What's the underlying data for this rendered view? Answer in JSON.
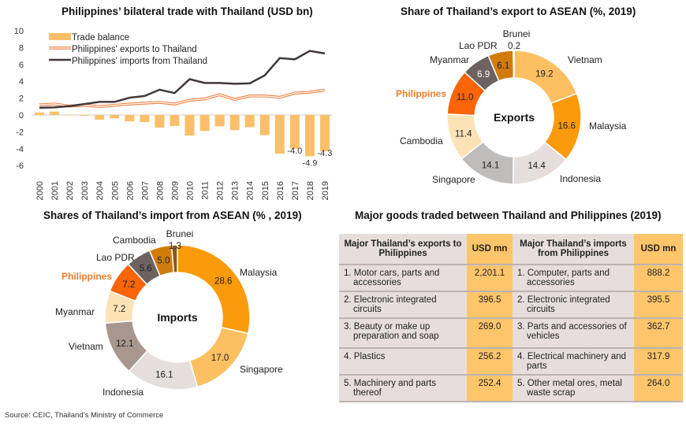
{
  "titles": {
    "trade": "Philippines’ bilateral trade with Thailand (USD bn)",
    "export_share": "Share of Thailand’s export to ASEAN  (%, 2019)",
    "import_share": "Shares of Thailand’s import from ASEAN (% , 2019)",
    "goods": "Major goods traded between Thailand and Philippines (2019)"
  },
  "source": "Source: CEIC, Thailand’s Ministry of Commerce",
  "colors": {
    "bar": "#fbbf6a",
    "exports": "#f07c3a",
    "imports": "#403838",
    "philippines": "#f07c2c"
  },
  "chart_data": [
    {
      "type": "bar+line",
      "title": "Philippines’ bilateral trade with Thailand (USD bn)",
      "ylim": [
        -6,
        10
      ],
      "yticks": [
        "10",
        "8",
        "6",
        "4",
        "2",
        "0",
        "-2",
        "-4",
        "-6"
      ],
      "categories": [
        "2000",
        "2001",
        "2002",
        "2003",
        "2004",
        "2005",
        "2006",
        "2007",
        "2008",
        "2009",
        "2010",
        "2011",
        "2012",
        "2013",
        "2014",
        "2015",
        "2016",
        "2017",
        "2018",
        "2019"
      ],
      "legend": [
        "Trade balance",
        "Philippines' exports to Thailand",
        "Philippines' imports from Thailand"
      ],
      "legend_position": "top-left",
      "series": [
        {
          "name": "Trade balance",
          "kind": "bar",
          "values": [
            0.3,
            0.4,
            0.0,
            -0.1,
            -0.55,
            -0.4,
            -0.75,
            -0.85,
            -1.5,
            -1.3,
            -2.45,
            -1.9,
            -1.35,
            -1.8,
            -1.45,
            -2.4,
            -4.6,
            -4.0,
            -4.9,
            -4.3
          ]
        },
        {
          "name": "Philippines' exports to Thailand",
          "kind": "line",
          "values": [
            1.2,
            1.3,
            1.05,
            1.15,
            1.0,
            1.15,
            1.3,
            1.4,
            1.5,
            1.3,
            1.75,
            1.9,
            2.4,
            1.85,
            2.25,
            2.25,
            2.1,
            2.6,
            2.7,
            2.95
          ]
        },
        {
          "name": "Philippines' imports from Thailand",
          "kind": "line",
          "values": [
            0.85,
            0.9,
            1.05,
            1.3,
            1.55,
            1.55,
            2.05,
            2.25,
            3.0,
            2.6,
            4.25,
            3.8,
            3.8,
            3.7,
            3.75,
            4.7,
            6.75,
            6.6,
            7.6,
            7.3
          ]
        }
      ],
      "data_labels": [
        {
          "category": "2017",
          "text": "-4.0"
        },
        {
          "category": "2018",
          "text": "-4.9"
        },
        {
          "category": "2019",
          "text": "-4.3"
        }
      ]
    },
    {
      "type": "pie",
      "title": "Share of Thailand’s export to ASEAN  (%, 2019)",
      "center_label": "Exports",
      "slices": [
        {
          "label": "Vietnam",
          "value": 19.2,
          "text": "19.2",
          "color": "#fcc062"
        },
        {
          "label": "Malaysia",
          "value": 16.6,
          "text": "16.6",
          "color": "#fb9a0a"
        },
        {
          "label": "Indonesia",
          "value": 14.4,
          "text": "14.4",
          "color": "#e6dedc"
        },
        {
          "label": "Singapore",
          "value": 14.1,
          "text": "14.1",
          "color": "#bfbcbc"
        },
        {
          "label": "Cambodia",
          "value": 11.4,
          "text": "11.4",
          "color": "#fde2b6"
        },
        {
          "label": "Philippines",
          "value": 11.0,
          "text": "11.0",
          "color": "#fb6407"
        },
        {
          "label": "Myanmar",
          "value": 6.9,
          "text": "6.9",
          "color": "#6d6262"
        },
        {
          "label": "Lao PDR",
          "value": 6.1,
          "text": "6.1",
          "color": "#d07c0c"
        },
        {
          "label": "Brunei",
          "value": 0.2,
          "text": "0.2",
          "color": "#8a5a1a"
        }
      ]
    },
    {
      "type": "pie",
      "title": "Shares of Thailand’s import from ASEAN (% , 2019)",
      "center_label": "Imports",
      "slices": [
        {
          "label": "Malaysia",
          "value": 28.6,
          "text": "28.6",
          "color": "#fb9a0a"
        },
        {
          "label": "Singapore",
          "value": 17.0,
          "text": "17.0",
          "color": "#fcc062"
        },
        {
          "label": "Indonesia",
          "value": 16.1,
          "text": "16.1",
          "color": "#e6dedc"
        },
        {
          "label": "Vietnam",
          "value": 12.1,
          "text": "12.1",
          "color": "#a8968f"
        },
        {
          "label": "Myanmar",
          "value": 7.2,
          "text": "7.2",
          "color": "#fde2b6"
        },
        {
          "label": "Philippines",
          "value": 7.2,
          "text": "7.2",
          "color": "#fb6407"
        },
        {
          "label": "Lao PDR",
          "value": 5.6,
          "text": "5.6",
          "color": "#6d6262"
        },
        {
          "label": "Cambodia",
          "value": 5.0,
          "text": "5.0",
          "color": "#d07c0c"
        },
        {
          "label": "Brunei",
          "value": 1.3,
          "text": "1.3",
          "color": "#8a5a1a"
        }
      ]
    },
    {
      "type": "table",
      "title": "Major goods traded between Thailand and Philippines (2019)",
      "headers": [
        "Major Thailand’s exports to Philippines",
        "USD mn",
        "Major Thailand’s imports from Philippines",
        "USD mn"
      ],
      "rows": [
        [
          "1. Motor cars, parts and accessories",
          "2,201.1",
          "1. Computer, parts and accessories",
          "888.2"
        ],
        [
          "2. Electronic integrated circuits",
          "396.5",
          "2. Electronic integrated circuits",
          "395.5"
        ],
        [
          "3. Beauty or make up preparation and soap",
          "269.0",
          "3. Parts and accessories of vehicles",
          "362.7"
        ],
        [
          "4. Plastics",
          "256.2",
          "4. Electrical machinery and parts",
          "317.9"
        ],
        [
          "5. Machinery and parts thereof",
          "252.4",
          "5. Other metal ores, metal waste scrap",
          "264.0"
        ]
      ]
    }
  ]
}
